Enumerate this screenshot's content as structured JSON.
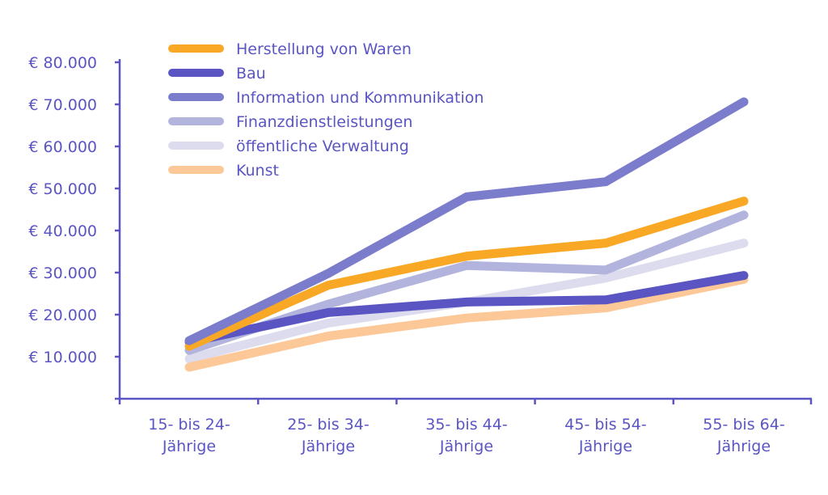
{
  "chart_data": {
    "type": "line",
    "title": "",
    "xlabel": "",
    "ylabel": "",
    "categories": [
      [
        "15- bis 24-",
        "Jährige"
      ],
      [
        "25- bis 34-",
        "Jährige"
      ],
      [
        "35- bis 44-",
        "Jährige"
      ],
      [
        "45- bis 54-",
        "Jährige"
      ],
      [
        "55- bis 64-",
        "Jährige"
      ]
    ],
    "ylim": [
      0,
      80000
    ],
    "yticks": [
      {
        "value": 10000,
        "label": "€ 10.000"
      },
      {
        "value": 20000,
        "label": "€ 20.000"
      },
      {
        "value": 30000,
        "label": "€ 30.000"
      },
      {
        "value": 40000,
        "label": "€ 40.000"
      },
      {
        "value": 50000,
        "label": "€ 50.000"
      },
      {
        "value": 60000,
        "label": "€ 60.000"
      },
      {
        "value": 70000,
        "label": "€ 70.000"
      },
      {
        "value": 80000,
        "label": "€ 80.000"
      }
    ],
    "grid": false,
    "legend_position": "top-left",
    "axis_color": "#5a55c2",
    "series": [
      {
        "name": "Herstellung von Waren",
        "color": "#f9a825",
        "values": [
          12500,
          27000,
          33900,
          37000,
          47000
        ]
      },
      {
        "name": "Bau",
        "color": "#5a55c2",
        "values": [
          13500,
          20500,
          23000,
          23500,
          29300
        ]
      },
      {
        "name": "Information und Kommunikation",
        "color": "#7c7ccc",
        "values": [
          13800,
          29800,
          48000,
          51600,
          70600
        ]
      },
      {
        "name": "Finanzdienstleistungen",
        "color": "#b3b4dd",
        "values": [
          11500,
          22500,
          31700,
          30600,
          43700
        ]
      },
      {
        "name": "öffentliche Verwaltung",
        "color": "#dcdcee",
        "values": [
          9500,
          18000,
          23000,
          28700,
          37000
        ]
      },
      {
        "name": "Kunst",
        "color": "#fdc898",
        "values": [
          7500,
          14900,
          19200,
          21600,
          28400
        ]
      }
    ]
  }
}
